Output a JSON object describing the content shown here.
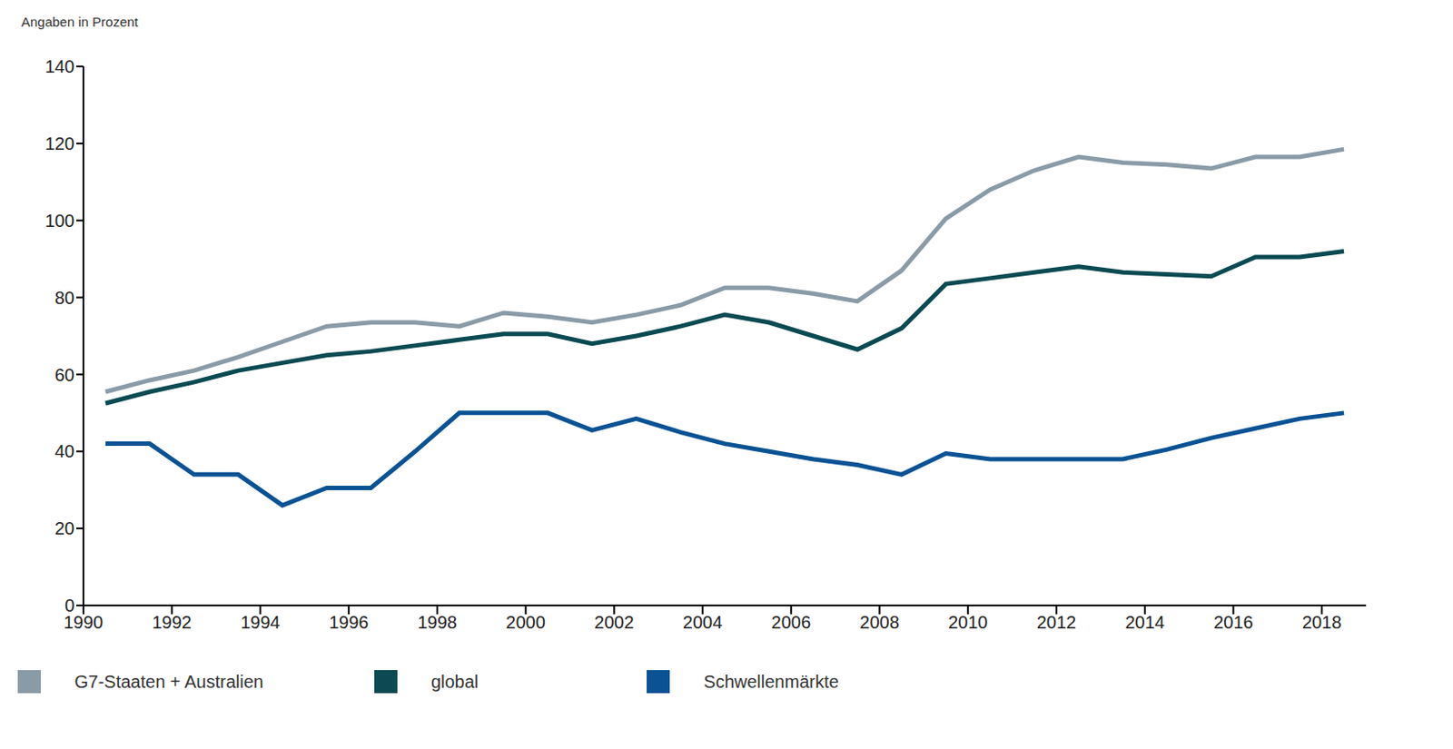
{
  "chart_data": {
    "type": "line",
    "y_label": "Angaben in Prozent",
    "x": [
      1990.5,
      1991.5,
      1992.5,
      1993.5,
      1994.5,
      1995.5,
      1996.5,
      1997.5,
      1998.5,
      1999.5,
      2000.5,
      2001.5,
      2002.5,
      2003.5,
      2004.5,
      2005.5,
      2006.5,
      2007.5,
      2008.5,
      2009.5,
      2010.5,
      2011.5,
      2012.5,
      2013.5,
      2014.5,
      2015.5,
      2016.5,
      2017.5,
      2018.5
    ],
    "series": [
      {
        "name": "G7-Staaten + Australien",
        "color": "#8a9ba8",
        "values": [
          55.5,
          58.5,
          61,
          64.5,
          68.5,
          72.5,
          73.5,
          73.5,
          72.5,
          76,
          75,
          73.5,
          75.5,
          78,
          82.5,
          82.5,
          81,
          79,
          87,
          100.5,
          108,
          113,
          116.5,
          115,
          114.5,
          113.5,
          116.5,
          116.5,
          118.5
        ]
      },
      {
        "name": "global",
        "color": "#0b4a52",
        "values": [
          52.5,
          55.5,
          58,
          61,
          63,
          65,
          66,
          67.5,
          69,
          70.5,
          70.5,
          68,
          70,
          72.5,
          75.5,
          73.5,
          70,
          66.5,
          72,
          83.5,
          85,
          86.5,
          88,
          86.5,
          86,
          85.5,
          90.5,
          90.5,
          92
        ]
      },
      {
        "name": "Schwellenmärkte",
        "color": "#0a5294",
        "values": [
          42,
          42,
          34,
          34,
          26,
          30.5,
          30.5,
          40,
          50,
          50,
          50,
          45.5,
          48.5,
          45,
          42,
          40,
          38,
          36.5,
          34,
          39.5,
          38,
          38,
          38,
          38,
          40.5,
          43.5,
          46,
          48.5,
          50
        ]
      }
    ],
    "xlim": [
      1990,
      2019
    ],
    "xticks": [
      1990,
      1992,
      1994,
      1996,
      1998,
      2000,
      2002,
      2004,
      2006,
      2008,
      2010,
      2012,
      2014,
      2016,
      2018
    ],
    "ylim": [
      0,
      140
    ],
    "yticks": [
      0,
      20,
      40,
      60,
      80,
      100,
      120,
      140
    ],
    "grid": false,
    "legend": "bottom"
  }
}
